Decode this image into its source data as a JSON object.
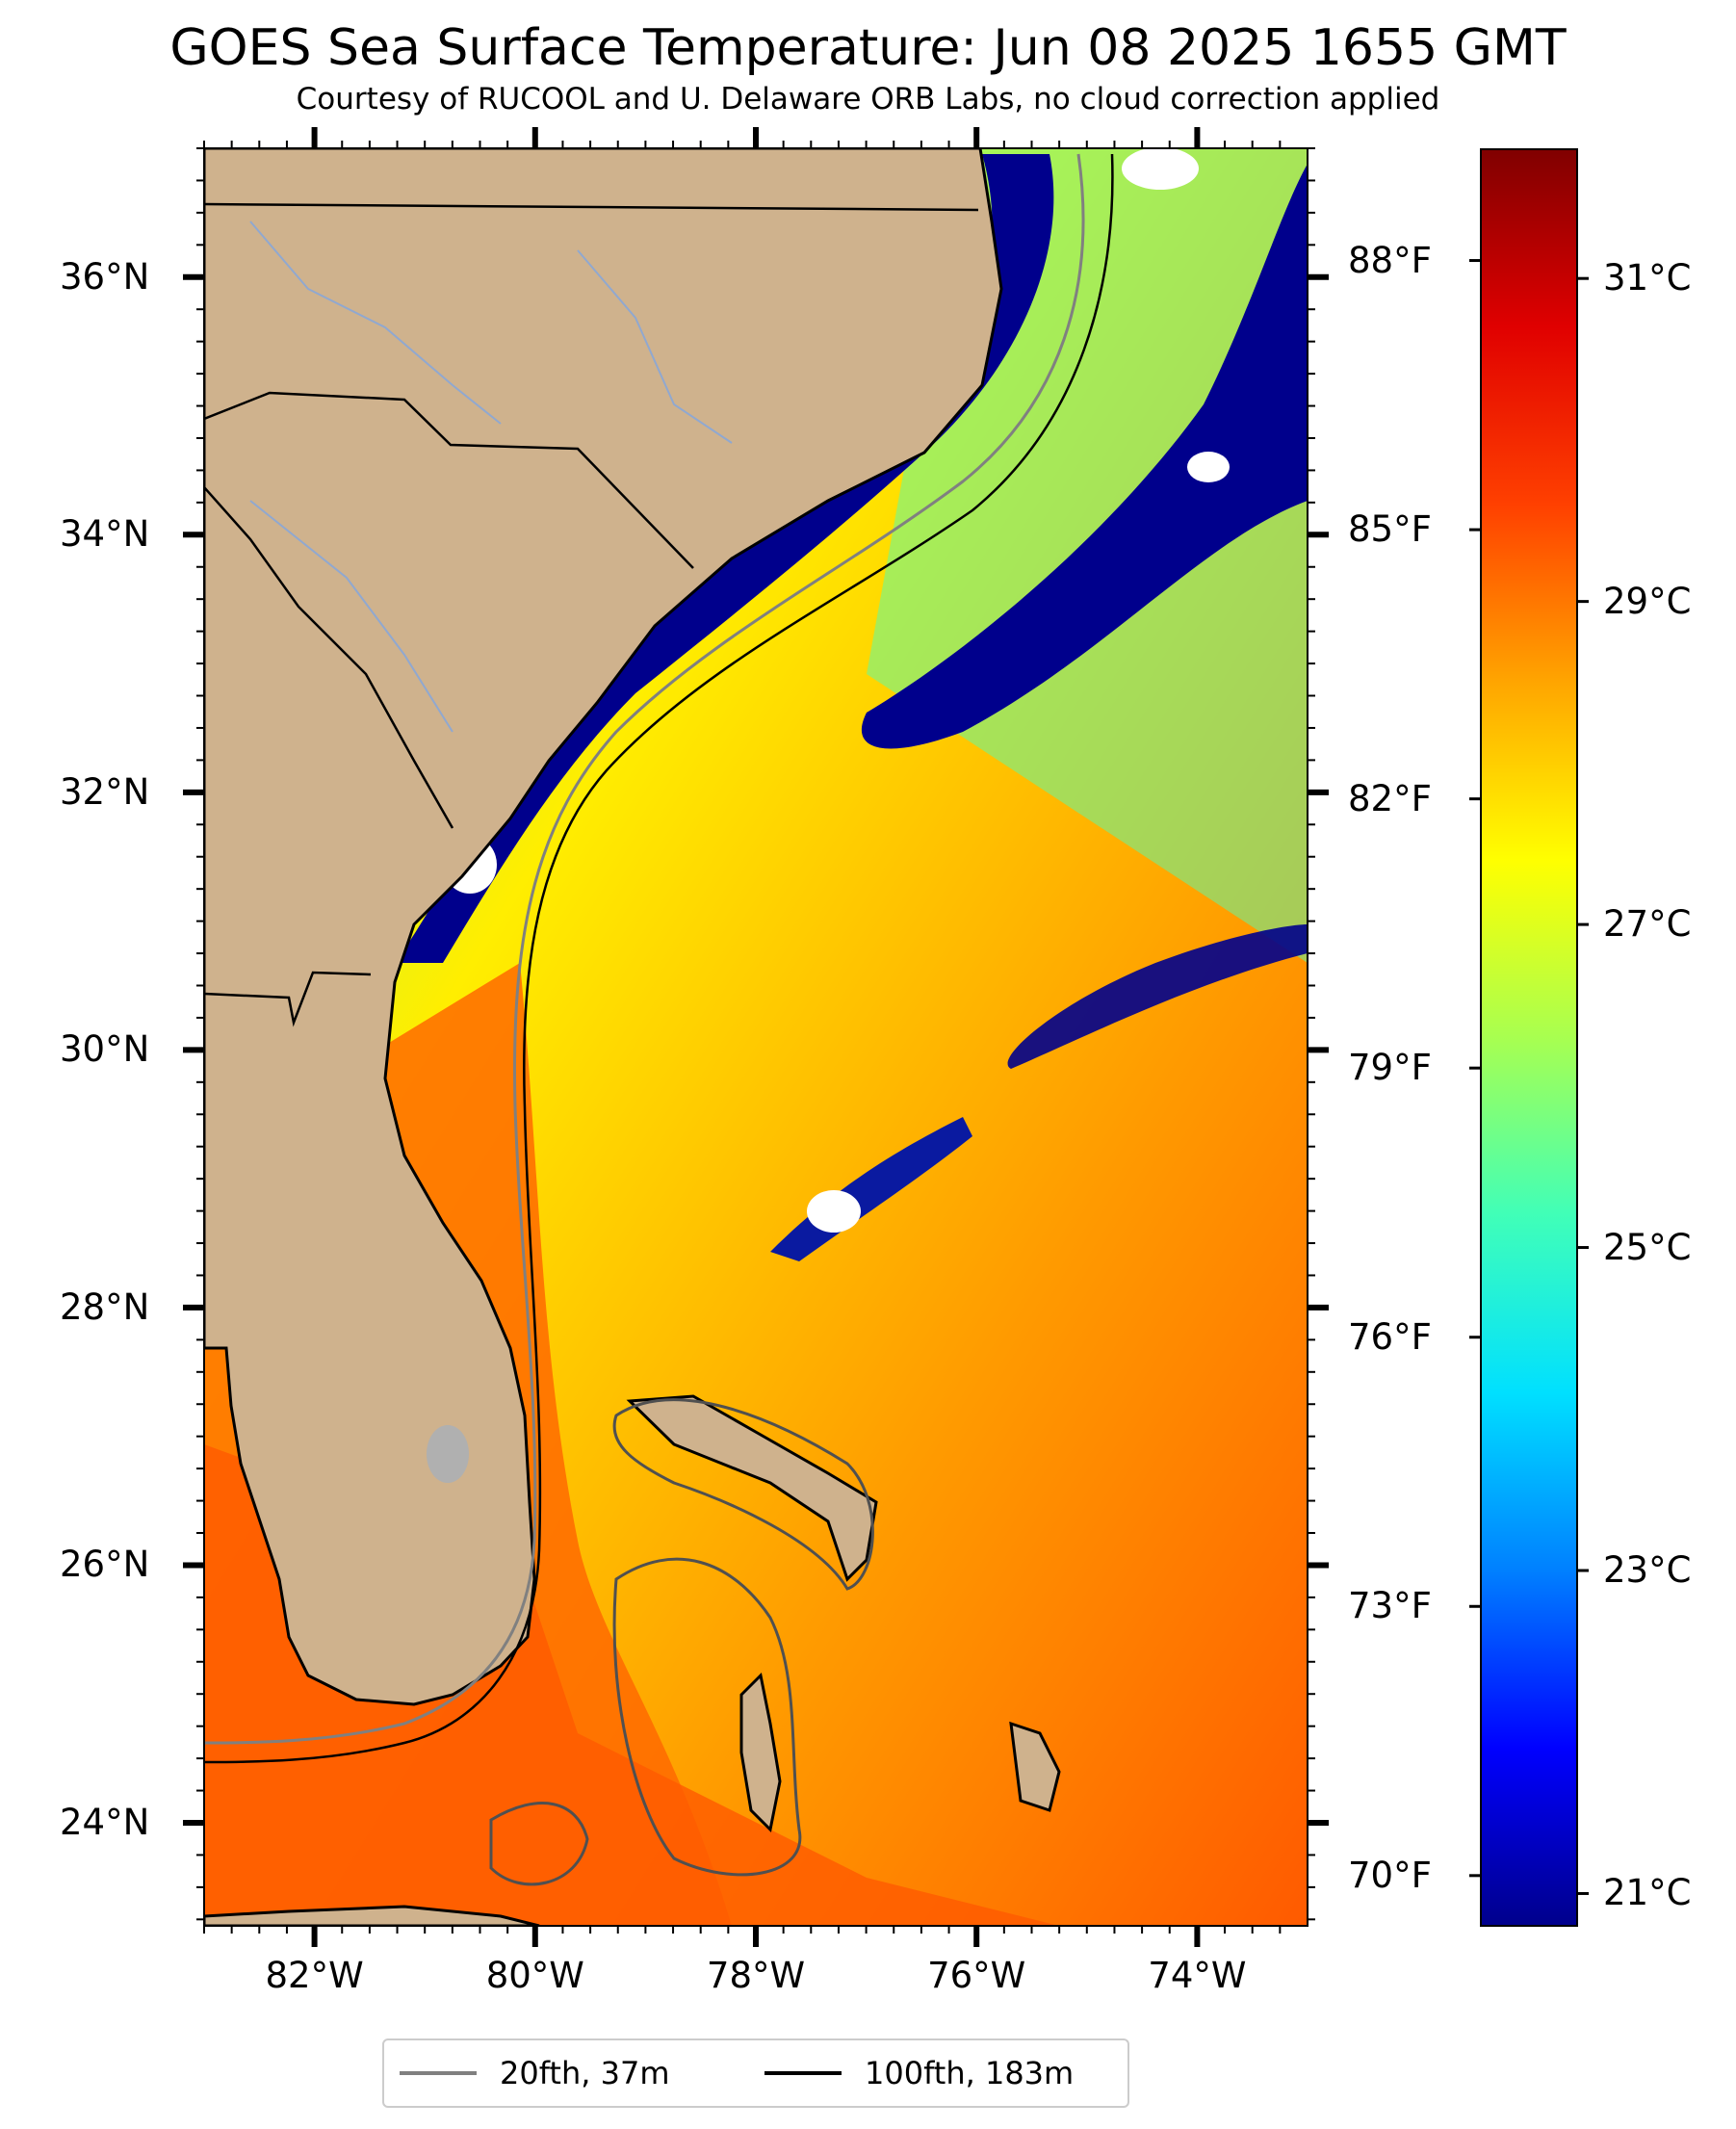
{
  "title": "GOES Sea Surface Temperature: Jun 08 2025 1655 GMT",
  "subtitle": "Courtesy of RUCOOL and U. Delaware ORB Labs, no cloud correction applied",
  "map": {
    "extent": {
      "lon_min": -83,
      "lon_max": -73,
      "lat_min": 23.2,
      "lat_max": 37.0
    },
    "land_color": "#cfb28d",
    "ocean_warm_color": "#ff7a00",
    "ocean_cold_color": "#00008c",
    "lat_labels": [
      {
        "value": 36,
        "text": "36°N"
      },
      {
        "value": 34,
        "text": "34°N"
      },
      {
        "value": 32,
        "text": "32°N"
      },
      {
        "value": 30,
        "text": "30°N"
      },
      {
        "value": 28,
        "text": "28°N"
      },
      {
        "value": 26,
        "text": "26°N"
      },
      {
        "value": 24,
        "text": "24°N"
      }
    ],
    "lon_labels": [
      {
        "value": -82,
        "text": "82°W"
      },
      {
        "value": -80,
        "text": "80°W"
      },
      {
        "value": -78,
        "text": "78°W"
      },
      {
        "value": -76,
        "text": "76°W"
      },
      {
        "value": -74,
        "text": "74°W"
      }
    ]
  },
  "colorbar": {
    "range_c": [
      20.8,
      31.8
    ],
    "colors": [
      "#00008c",
      "#0000ff",
      "#0080ff",
      "#00e0ff",
      "#40ffb8",
      "#a8ff50",
      "#ffff00",
      "#ffa500",
      "#ff4000",
      "#e00000",
      "#800000"
    ],
    "celsius_ticks": [
      {
        "value": 31,
        "text": "31°C"
      },
      {
        "value": 29,
        "text": "29°C"
      },
      {
        "value": 27,
        "text": "27°C"
      },
      {
        "value": 25,
        "text": "25°C"
      },
      {
        "value": 23,
        "text": "23°C"
      },
      {
        "value": 21,
        "text": "21°C"
      }
    ],
    "fahrenheit_ticks": [
      {
        "value": 88,
        "text": "88°F"
      },
      {
        "value": 85,
        "text": "85°F"
      },
      {
        "value": 82,
        "text": "82°F"
      },
      {
        "value": 79,
        "text": "79°F"
      },
      {
        "value": 76,
        "text": "76°F"
      },
      {
        "value": 73,
        "text": "73°F"
      },
      {
        "value": 70,
        "text": "70°F"
      }
    ]
  },
  "legend": {
    "items": [
      {
        "label": "20fth, 37m",
        "color": "#808080"
      },
      {
        "label": "100fth, 183m",
        "color": "#000000"
      }
    ]
  }
}
